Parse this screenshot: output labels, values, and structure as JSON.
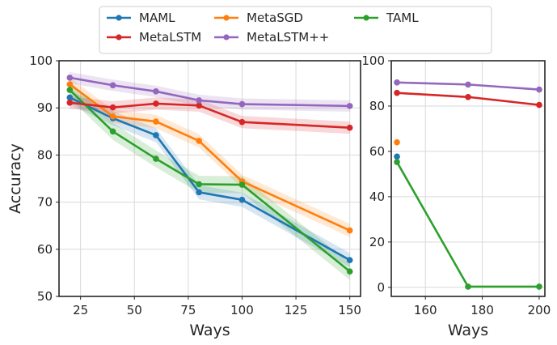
{
  "legend": {
    "entries": [
      {
        "name": "MAML",
        "color": "#1f77b4"
      },
      {
        "name": "MetaSGD",
        "color": "#ff7f0e"
      },
      {
        "name": "TAML",
        "color": "#2ca02c"
      },
      {
        "name": "MetaLSTM",
        "color": "#d62728"
      },
      {
        "name": "MetaLSTM++",
        "color": "#9467bd"
      }
    ]
  },
  "chart_data": [
    {
      "type": "line",
      "title": "",
      "xlabel": "Ways",
      "ylabel": "Accuracy",
      "xlim": [
        15,
        155
      ],
      "ylim": [
        50,
        100
      ],
      "xticks": [
        25,
        50,
        75,
        100,
        125,
        150
      ],
      "yticks": [
        50,
        60,
        70,
        80,
        90,
        100
      ],
      "grid": true,
      "x": [
        20,
        40,
        60,
        80,
        100,
        150
      ],
      "series": [
        {
          "name": "MAML",
          "color": "#1f77b4",
          "values": [
            92.2,
            87.8,
            84.2,
            72.1,
            70.5,
            57.7
          ],
          "band": 1.5
        },
        {
          "name": "MetaSGD",
          "color": "#ff7f0e",
          "values": [
            95.0,
            88.2,
            87.1,
            83.0,
            74.4,
            64.0
          ],
          "band": 1.4
        },
        {
          "name": "TAML",
          "color": "#2ca02c",
          "values": [
            93.8,
            85.0,
            79.2,
            73.8,
            73.7,
            55.3
          ],
          "band": 1.8
        },
        {
          "name": "MetaLSTM",
          "color": "#d62728",
          "values": [
            91.1,
            90.1,
            90.9,
            90.5,
            87.0,
            85.8
          ],
          "band": 1.3
        },
        {
          "name": "MetaLSTM++",
          "color": "#9467bd",
          "values": [
            96.4,
            94.8,
            93.5,
            91.6,
            90.8,
            90.4
          ],
          "band": 1.2
        }
      ]
    },
    {
      "type": "line",
      "title": "",
      "xlabel": "Ways",
      "ylabel": "",
      "xlim": [
        148,
        202
      ],
      "ylim": [
        -4,
        100
      ],
      "xticks": [
        160,
        180,
        200
      ],
      "yticks": [
        0,
        20,
        40,
        60,
        80,
        100
      ],
      "grid": true,
      "x": [
        150,
        175,
        200
      ],
      "series": [
        {
          "name": "MAML",
          "color": "#1f77b4",
          "values": [
            57.7,
            null,
            null
          ],
          "band": 0
        },
        {
          "name": "MetaSGD",
          "color": "#ff7f0e",
          "values": [
            64.0,
            null,
            null
          ],
          "band": 0
        },
        {
          "name": "TAML",
          "color": "#2ca02c",
          "values": [
            55.3,
            0.3,
            0.3
          ],
          "band": 0
        },
        {
          "name": "MetaLSTM",
          "color": "#d62728",
          "values": [
            85.8,
            84.0,
            80.5
          ],
          "band": 0
        },
        {
          "name": "MetaLSTM++",
          "color": "#9467bd",
          "values": [
            90.4,
            89.5,
            87.3
          ],
          "band": 0
        }
      ]
    }
  ]
}
